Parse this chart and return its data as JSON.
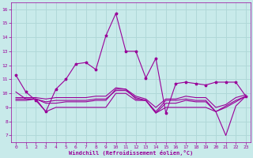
{
  "xlabel": "Windchill (Refroidissement éolien,°C)",
  "xlim": [
    -0.5,
    23.5
  ],
  "ylim": [
    6.5,
    16.5
  ],
  "xticks": [
    0,
    1,
    2,
    3,
    4,
    5,
    6,
    7,
    8,
    9,
    10,
    11,
    12,
    13,
    14,
    15,
    16,
    17,
    18,
    19,
    20,
    21,
    22,
    23
  ],
  "yticks": [
    7,
    8,
    9,
    10,
    11,
    12,
    13,
    14,
    15,
    16
  ],
  "bg_color": "#c8eaea",
  "grid_color": "#b0d8d8",
  "line_color": "#990099",
  "line1": [
    11.3,
    10.1,
    9.5,
    8.7,
    10.3,
    11.0,
    12.1,
    12.2,
    11.7,
    14.1,
    15.7,
    13.0,
    13.0,
    11.1,
    12.5,
    8.6,
    10.7,
    10.8,
    10.7,
    10.6,
    10.8,
    10.8,
    10.8,
    9.8
  ],
  "line2": [
    10.1,
    9.6,
    9.6,
    8.7,
    9.0,
    9.0,
    9.0,
    9.0,
    9.0,
    9.0,
    10.0,
    10.0,
    9.5,
    9.5,
    8.6,
    9.0,
    9.0,
    9.0,
    9.0,
    9.0,
    8.7,
    7.0,
    9.1,
    9.8
  ],
  "line3": [
    9.6,
    9.6,
    9.6,
    9.3,
    9.3,
    9.4,
    9.4,
    9.4,
    9.5,
    9.5,
    10.3,
    10.3,
    9.6,
    9.5,
    8.6,
    9.3,
    9.3,
    9.5,
    9.4,
    9.4,
    8.7,
    9.0,
    9.4,
    9.8
  ],
  "line4": [
    9.5,
    9.5,
    9.6,
    9.4,
    9.5,
    9.5,
    9.5,
    9.5,
    9.6,
    9.6,
    10.2,
    10.2,
    9.7,
    9.5,
    8.7,
    9.5,
    9.5,
    9.6,
    9.5,
    9.5,
    8.7,
    9.1,
    9.5,
    9.8
  ],
  "line5": [
    9.7,
    9.7,
    9.7,
    9.6,
    9.7,
    9.7,
    9.7,
    9.7,
    9.8,
    9.8,
    10.4,
    10.3,
    9.8,
    9.6,
    9.0,
    9.6,
    9.6,
    9.8,
    9.7,
    9.7,
    9.0,
    9.2,
    9.7,
    9.9
  ]
}
